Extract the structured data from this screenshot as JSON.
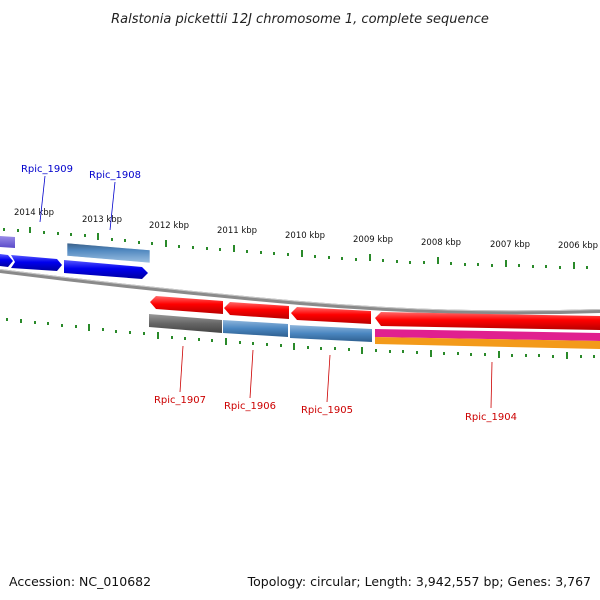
{
  "title": "Ralstonia pickettii 12J chromosome 1, complete sequence",
  "footer": {
    "accession": "Accession: NC_010682",
    "summary": "Topology: circular; Length: 3,942,557 bp; Genes: 3,767"
  },
  "colors": {
    "forward_label": "#0000cc",
    "reverse_label": "#cc0000",
    "tick_green": "#2a8a2a",
    "backbone": "#808080"
  },
  "scale_labels": [
    "2014 kbp",
    "2013 kbp",
    "2012 kbp",
    "2011 kbp",
    "2010 kbp",
    "2009 kbp",
    "2008 kbp",
    "2007 kbp",
    "2006 kbp"
  ],
  "gene_labels": {
    "forward": [
      "Rpic_1909",
      "Rpic_1908"
    ],
    "reverse": [
      "Rpic_1907",
      "Rpic_1906",
      "Rpic_1905",
      "Rpic_1904"
    ]
  }
}
